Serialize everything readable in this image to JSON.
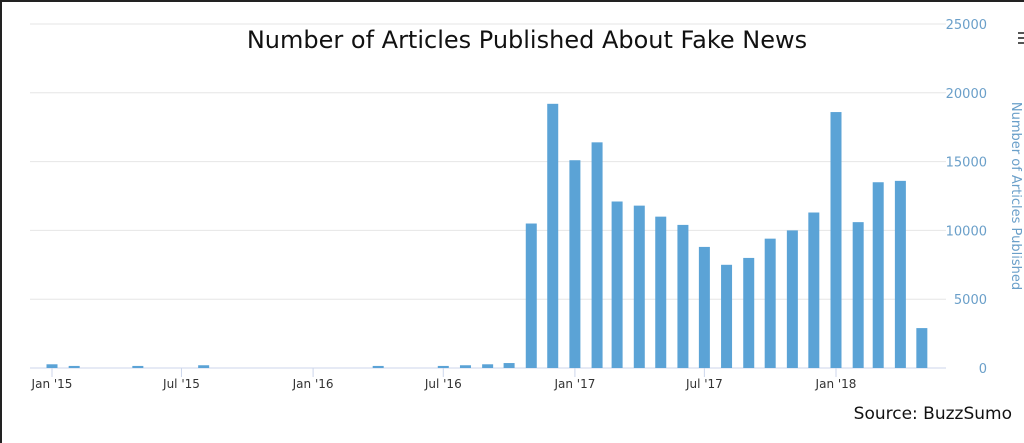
{
  "chart_data": {
    "type": "bar",
    "title": "Number of Articles Published About Fake News",
    "ylabel": "Number of Articles Published",
    "xlabel": "",
    "ylim": [
      0,
      25000
    ],
    "yticks": [
      "0",
      "5000",
      "10000",
      "15000",
      "20000",
      "25000"
    ],
    "y_axis_side": "right",
    "grid": true,
    "xtick_labels": [
      "Jan '15",
      "Jul '15",
      "Jan '16",
      "Jul '16",
      "Jan '17",
      "Jul '17",
      "Jan '18"
    ],
    "categories": [
      "2015-01",
      "2015-02",
      "2015-03",
      "2015-04",
      "2015-05",
      "2015-06",
      "2015-07",
      "2015-08",
      "2015-09",
      "2015-10",
      "2015-11",
      "2015-12",
      "2016-01",
      "2016-02",
      "2016-03",
      "2016-04",
      "2016-05",
      "2016-06",
      "2016-07",
      "2016-08",
      "2016-09",
      "2016-10",
      "2016-11",
      "2016-12",
      "2017-01",
      "2017-02",
      "2017-03",
      "2017-04",
      "2017-05",
      "2017-06",
      "2017-07",
      "2017-08",
      "2017-09",
      "2017-10",
      "2017-11",
      "2017-12",
      "2018-01",
      "2018-02",
      "2018-03",
      "2018-04",
      "2018-05"
    ],
    "values": [
      270,
      150,
      0,
      0,
      150,
      0,
      0,
      200,
      0,
      0,
      0,
      0,
      0,
      0,
      0,
      150,
      0,
      0,
      150,
      200,
      270,
      360,
      10500,
      19200,
      15100,
      16400,
      12100,
      11800,
      11000,
      10400,
      8800,
      7500,
      8000,
      9400,
      10000,
      11300,
      18600,
      10600,
      13500,
      13600,
      2900
    ],
    "color": "#5ba3d6",
    "axis_label_color": "#6a9fc9",
    "source": "Source: BuzzSumo"
  },
  "menu_icon": "hamburger-icon"
}
